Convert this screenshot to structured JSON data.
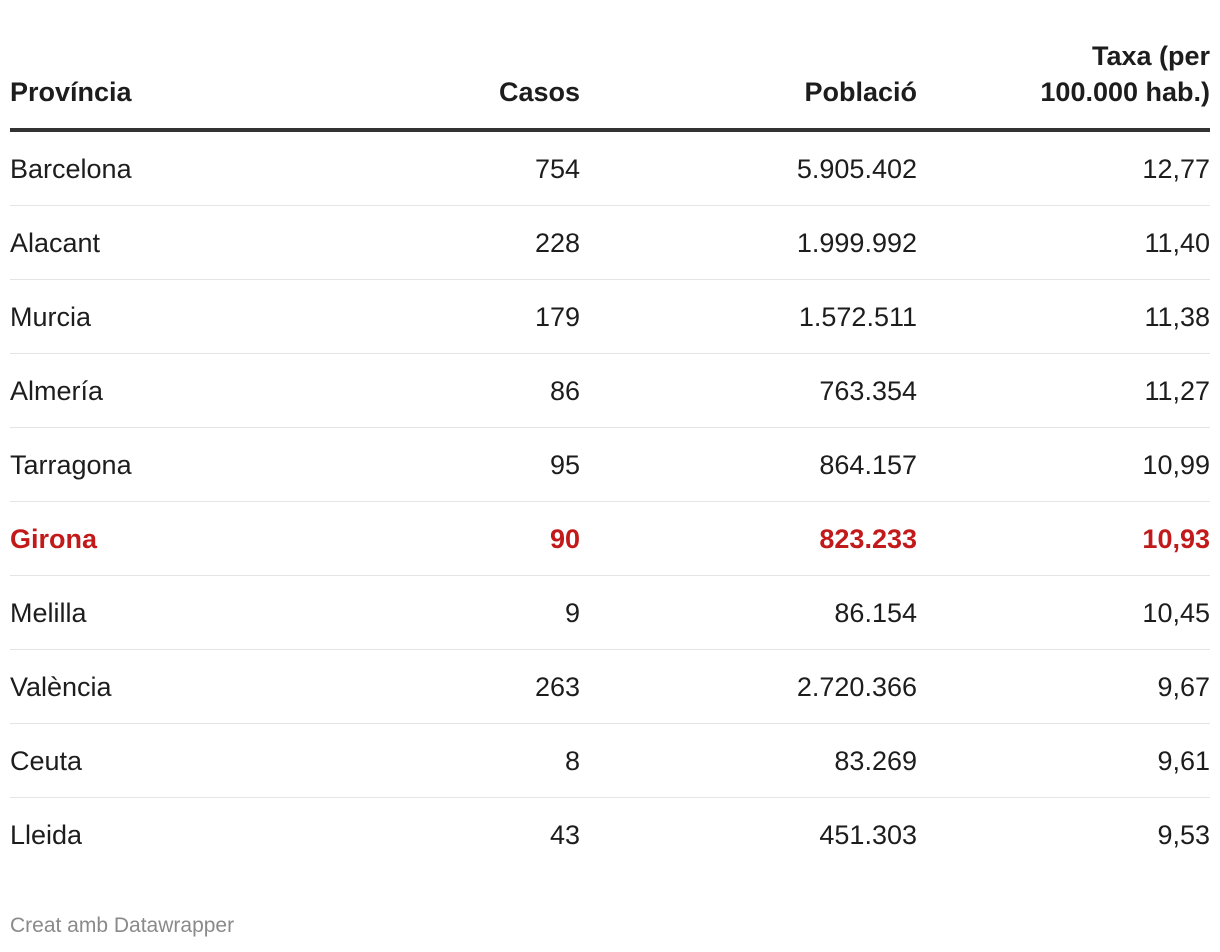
{
  "chart_data": {
    "type": "table",
    "columns": [
      "Província",
      "Casos",
      "Població",
      "Taxa (per 100.000 hab.)"
    ],
    "header_rate_line1": "Taxa (per",
    "header_rate_line2": "100.000 hab.)",
    "rows": [
      {
        "provincia": "Barcelona",
        "casos": "754",
        "poblacio": "5.905.402",
        "taxa": "12,77",
        "highlight": false
      },
      {
        "provincia": "Alacant",
        "casos": "228",
        "poblacio": "1.999.992",
        "taxa": "11,40",
        "highlight": false
      },
      {
        "provincia": "Murcia",
        "casos": "179",
        "poblacio": "1.572.511",
        "taxa": "11,38",
        "highlight": false
      },
      {
        "provincia": "Almería",
        "casos": "86",
        "poblacio": "763.354",
        "taxa": "11,27",
        "highlight": false
      },
      {
        "provincia": "Tarragona",
        "casos": "95",
        "poblacio": "864.157",
        "taxa": "10,99",
        "highlight": false
      },
      {
        "provincia": "Girona",
        "casos": "90",
        "poblacio": "823.233",
        "taxa": "10,93",
        "highlight": true
      },
      {
        "provincia": "Melilla",
        "casos": "9",
        "poblacio": "86.154",
        "taxa": "10,45",
        "highlight": false
      },
      {
        "provincia": "València",
        "casos": "263",
        "poblacio": "2.720.366",
        "taxa": "9,67",
        "highlight": false
      },
      {
        "provincia": "Ceuta",
        "casos": "8",
        "poblacio": "83.269",
        "taxa": "9,61",
        "highlight": false
      },
      {
        "provincia": "Lleida",
        "casos": "43",
        "poblacio": "451.303",
        "taxa": "9,53",
        "highlight": false
      }
    ],
    "highlight_color": "#c21a1a"
  },
  "footer": {
    "credit": "Creat amb Datawrapper"
  }
}
